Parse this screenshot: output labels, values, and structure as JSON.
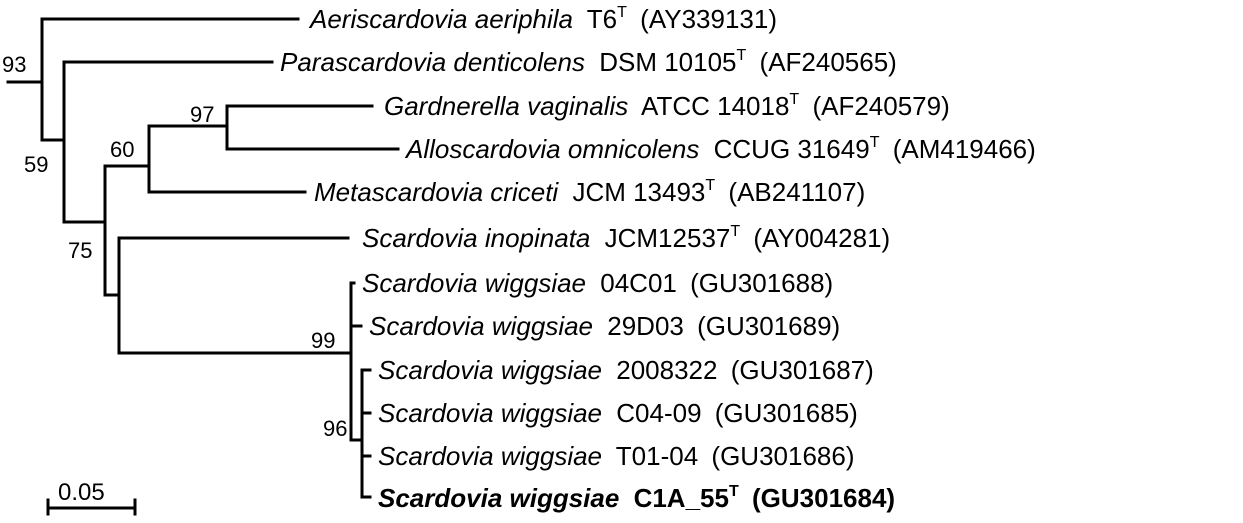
{
  "tree": {
    "taxa": [
      {
        "id": "aeriscardovia",
        "genus_species": "Aeriscardovia aeriphila",
        "strain": "T6",
        "type_strain": true,
        "accession": "(AY339131)",
        "highlight": false
      },
      {
        "id": "parascardovia",
        "genus_species": "Parascardovia denticolens",
        "strain": "DSM 10105",
        "type_strain": true,
        "accession": "(AF240565)",
        "highlight": false
      },
      {
        "id": "gardnerella",
        "genus_species": "Gardnerella vaginalis",
        "strain": "ATCC 14018",
        "type_strain": true,
        "accession": "(AF240579)",
        "highlight": false
      },
      {
        "id": "alloscardovia",
        "genus_species": "Alloscardovia omnicolens",
        "strain": "CCUG 31649",
        "type_strain": true,
        "accession": "(AM419466)",
        "highlight": false
      },
      {
        "id": "metascardovia",
        "genus_species": "Metascardovia criceti",
        "strain": "JCM 13493",
        "type_strain": true,
        "accession": "(AB241107)",
        "highlight": false
      },
      {
        "id": "scardovia-inopinata",
        "genus_species": "Scardovia inopinata",
        "strain": "JCM12537",
        "type_strain": true,
        "accession": "(AY004281)",
        "highlight": false
      },
      {
        "id": "sw-04c01",
        "genus_species": "Scardovia wiggsiae",
        "strain": "04C01",
        "type_strain": false,
        "accession": "(GU301688)",
        "highlight": false
      },
      {
        "id": "sw-29d03",
        "genus_species": "Scardovia wiggsiae",
        "strain": "29D03",
        "type_strain": false,
        "accession": "(GU301689)",
        "highlight": false
      },
      {
        "id": "sw-2008322",
        "genus_species": "Scardovia wiggsiae",
        "strain": "2008322",
        "type_strain": false,
        "accession": "(GU301687)",
        "highlight": false
      },
      {
        "id": "sw-c04-09",
        "genus_species": "Scardovia wiggsiae",
        "strain": "C04-09",
        "type_strain": false,
        "accession": "(GU301685)",
        "highlight": false
      },
      {
        "id": "sw-t01-04",
        "genus_species": "Scardovia wiggsiae",
        "strain": "T01-04",
        "type_strain": false,
        "accession": "(GU301686)",
        "highlight": false
      },
      {
        "id": "sw-c1a55",
        "genus_species": "Scardovia wiggsiae",
        "strain": "C1A_55",
        "type_strain": true,
        "accession": "(GU301684)",
        "highlight": true
      }
    ],
    "type_strain_mark": "T",
    "bootstrap_values": [
      "93",
      "59",
      "97",
      "60",
      "75",
      "99",
      "96"
    ],
    "scale_bar": {
      "label": "0.05",
      "length": 0.05
    }
  }
}
